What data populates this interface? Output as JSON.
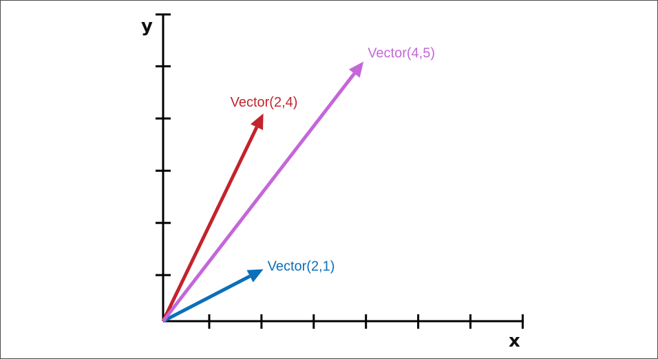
{
  "axes": {
    "x_label": "x",
    "y_label": "y",
    "x_ticks": 7,
    "y_ticks": 5,
    "color": "#000000"
  },
  "vectors": [
    {
      "name": "Vector(2,1)",
      "x": 2,
      "y": 1,
      "color": "#0a6fba"
    },
    {
      "name": "Vector(2,4)",
      "x": 2,
      "y": 4,
      "color": "#c3232c"
    },
    {
      "name": "Vector(4,5)",
      "x": 4,
      "y": 5,
      "color": "#c466d9"
    }
  ]
}
